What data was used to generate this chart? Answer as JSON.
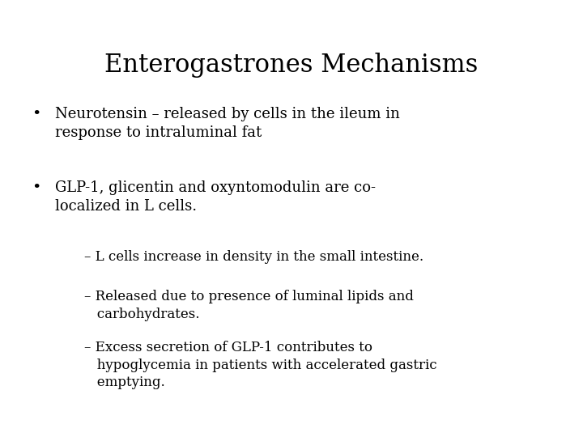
{
  "title": "Enterogastrones Mechanisms",
  "background_color": "#ffffff",
  "text_color": "#000000",
  "title_fontsize": 22,
  "body_fontsize": 13,
  "sub_fontsize": 12,
  "bullet1_line1": "Neurotensin – released by cells in the ileum in",
  "bullet1_line2": "response to intraluminal fat",
  "bullet2_line1": "GLP-1, glicentin and oxyntomodulin are co-",
  "bullet2_line2": "localized in L cells.",
  "sub1": "– L cells increase in density in the small intestine.",
  "sub2_line1": "– Released due to presence of luminal lipids and",
  "sub2_line2": "   carbohydrates.",
  "sub3_line1": "– Excess secretion of GLP-1 contributes to",
  "sub3_line2": "   hypoglycemia in patients with accelerated gastric",
  "sub3_line3": "   emptying.",
  "font_family": "DejaVu Serif"
}
